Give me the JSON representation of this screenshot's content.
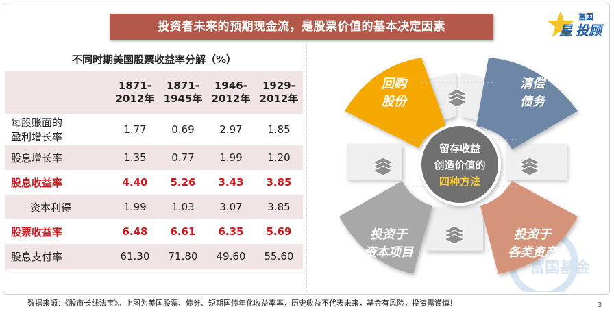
{
  "banner": {
    "title": "投资者未来的预期现金流，是股票价值的基本决定因素"
  },
  "logo": {
    "top": "富国",
    "star": "星",
    "main": "投顾"
  },
  "table": {
    "title": "不同时期美国股票收益率分解（%）",
    "headers": [
      {
        "line1": "1871-",
        "line2": "2012年"
      },
      {
        "line1": "1871-",
        "line2": "1945年"
      },
      {
        "line1": "1946-",
        "line2": "2012年"
      },
      {
        "line1": "1929-",
        "line2": "2012年"
      }
    ],
    "rows": [
      {
        "label_line1": "每股账面的",
        "label_line2": "盈利增长率",
        "values": [
          "1.77",
          "0.69",
          "2.97",
          "1.85"
        ]
      },
      {
        "label": "股息增长率",
        "values": [
          "1.35",
          "0.77",
          "1.99",
          "1.20"
        ]
      },
      {
        "label": "股息收益率",
        "values": [
          "4.40",
          "5.26",
          "3.43",
          "3.85"
        ]
      },
      {
        "label": "资本利得",
        "values": [
          "1.99",
          "1.03",
          "3.07",
          "3.85"
        ]
      },
      {
        "label": "股票收益率",
        "values": [
          "6.48",
          "6.61",
          "6.35",
          "5.69"
        ]
      },
      {
        "label": "股息支付率",
        "values": [
          "61.30",
          "71.80",
          "49.60",
          "55.60"
        ]
      }
    ]
  },
  "diagram": {
    "center_line1": "留存收益",
    "center_line2": "创造价值的",
    "center_line3": "四种方法",
    "segments": [
      {
        "line1": "回购",
        "line2": "股份"
      },
      {
        "line1": "清偿",
        "line2": "债务"
      },
      {
        "line1": "投资于",
        "line2": "资本项目"
      },
      {
        "line1": "投资于",
        "line2": "各类资产"
      }
    ],
    "watermark": "富国基金",
    "colors": {
      "orange": "#f5a800",
      "blue": "#6e87a6",
      "gray": "#a8a8a8",
      "salmon": "#d5937a",
      "center": "#6f6f6f",
      "gold": "#ffcc33"
    }
  },
  "footer": {
    "source": "数据来源：《股市长线法宝》。上图为美国股票、债券、短期国债年化收益率率，历史收益不代表未来，基金有风险，投资需谨慎！",
    "page": "3"
  }
}
